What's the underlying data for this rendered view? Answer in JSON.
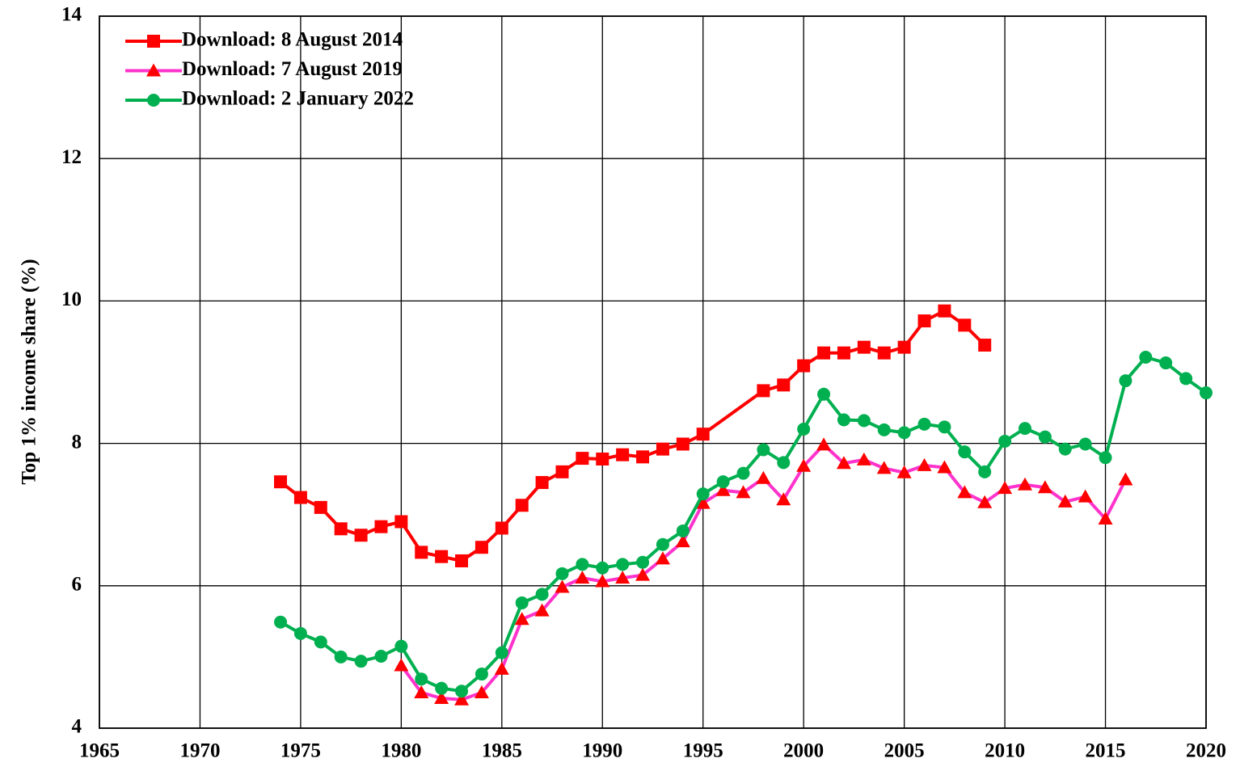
{
  "chart_data": {
    "type": "line",
    "y_label": "Top 1% income share (%)",
    "xlim": [
      1965,
      2020
    ],
    "xticks": [
      1965,
      1970,
      1975,
      1980,
      1985,
      1990,
      1995,
      2000,
      2005,
      2010,
      2015,
      2020
    ],
    "ylim": [
      4,
      14
    ],
    "yticks": [
      4,
      6,
      8,
      10,
      12,
      14
    ],
    "grid": true,
    "legend": "upper left",
    "series": [
      {
        "name": "Download: 8 August 2014",
        "color": "#ff0000",
        "marker_color": "#ff0000",
        "marker": "square",
        "x": [
          1974,
          1975,
          1976,
          1977,
          1978,
          1979,
          1980,
          1981,
          1982,
          1983,
          1984,
          1985,
          1986,
          1987,
          1988,
          1989,
          1990,
          1991,
          1992,
          1993,
          1994,
          1995,
          1998,
          1999,
          2000,
          2001,
          2002,
          2003,
          2004,
          2005,
          2006,
          2007,
          2008,
          2009
        ],
        "values": [
          7.46,
          7.24,
          7.1,
          6.8,
          6.71,
          6.83,
          6.9,
          6.47,
          6.41,
          6.35,
          6.54,
          6.81,
          7.13,
          7.45,
          7.6,
          7.79,
          7.78,
          7.84,
          7.81,
          7.92,
          7.99,
          8.13,
          8.74,
          8.82,
          9.09,
          9.27,
          9.27,
          9.35,
          9.27,
          9.35,
          9.72,
          9.86,
          9.66,
          9.38
        ]
      },
      {
        "name": "Download: 7 August 2019",
        "color": "#ff33cc",
        "marker_color": "#ff0000",
        "marker": "triangle",
        "x": [
          1980,
          1981,
          1982,
          1983,
          1984,
          1985,
          1986,
          1987,
          1988,
          1989,
          1990,
          1991,
          1992,
          1993,
          1994,
          1995,
          1996,
          1997,
          1998,
          1999,
          2000,
          2001,
          2002,
          2003,
          2004,
          2005,
          2006,
          2007,
          2008,
          2009,
          2010,
          2011,
          2012,
          2013,
          2014,
          2015,
          2016
        ],
        "values": [
          4.88,
          4.5,
          4.42,
          4.4,
          4.5,
          4.83,
          5.53,
          5.65,
          5.98,
          6.11,
          6.06,
          6.11,
          6.15,
          6.38,
          6.62,
          7.16,
          7.34,
          7.31,
          7.51,
          7.21,
          7.68,
          7.98,
          7.72,
          7.77,
          7.65,
          7.59,
          7.69,
          7.66,
          7.31,
          7.17,
          7.37,
          7.42,
          7.38,
          7.18,
          7.25,
          6.94,
          7.49
        ]
      },
      {
        "name": "Download: 2 January 2022",
        "color": "#00b050",
        "marker_color": "#00b050",
        "marker": "circle",
        "x": [
          1974,
          1975,
          1976,
          1977,
          1978,
          1979,
          1980,
          1981,
          1982,
          1983,
          1984,
          1985,
          1986,
          1987,
          1988,
          1989,
          1990,
          1991,
          1992,
          1993,
          1994,
          1995,
          1996,
          1997,
          1998,
          1999,
          2000,
          2001,
          2002,
          2003,
          2004,
          2005,
          2006,
          2007,
          2008,
          2009,
          2010,
          2011,
          2012,
          2013,
          2014,
          2015,
          2016,
          2017,
          2018,
          2019,
          2020
        ],
        "values": [
          5.49,
          5.33,
          5.21,
          5.0,
          4.94,
          5.01,
          5.15,
          4.69,
          4.56,
          4.52,
          4.76,
          5.06,
          5.76,
          5.88,
          6.17,
          6.3,
          6.25,
          6.3,
          6.33,
          6.58,
          6.77,
          7.29,
          7.46,
          7.58,
          7.91,
          7.73,
          8.2,
          8.69,
          8.33,
          8.32,
          8.19,
          8.15,
          8.27,
          8.23,
          7.88,
          7.6,
          8.03,
          8.21,
          8.09,
          7.92,
          7.99,
          7.8,
          8.88,
          9.21,
          9.13,
          8.91,
          8.71
        ]
      }
    ]
  }
}
